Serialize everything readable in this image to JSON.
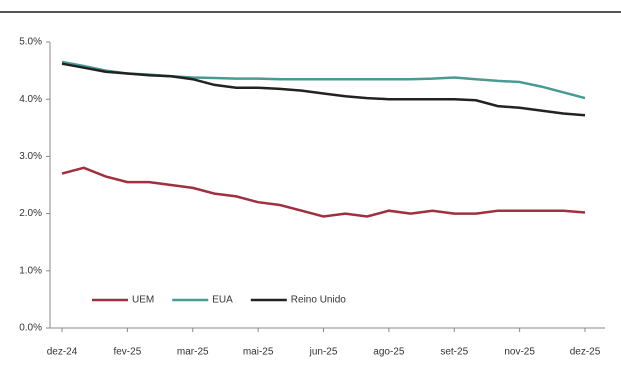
{
  "chart_data": {
    "type": "line",
    "categories": [
      "dez-24",
      null,
      null,
      "fev-25",
      null,
      null,
      "mar-25",
      null,
      null,
      "mai-25",
      null,
      null,
      "jun-25",
      null,
      null,
      "ago-25",
      null,
      null,
      "set-25",
      null,
      null,
      "nov-25",
      null,
      null,
      "dez-25"
    ],
    "series": [
      {
        "name": "UEM",
        "color": "#a0303f",
        "values": [
          2.7,
          2.8,
          2.65,
          2.55,
          2.55,
          2.5,
          2.45,
          2.35,
          2.3,
          2.2,
          2.15,
          2.05,
          1.95,
          2.0,
          1.95,
          2.05,
          2.0,
          2.05,
          2.0,
          2.0,
          2.05,
          2.05,
          2.05,
          2.05,
          2.02
        ]
      },
      {
        "name": "EUA",
        "color": "#4a9a94",
        "values": [
          4.65,
          4.58,
          4.5,
          4.45,
          4.43,
          4.4,
          4.38,
          4.37,
          4.36,
          4.36,
          4.35,
          4.35,
          4.35,
          4.35,
          4.35,
          4.35,
          4.35,
          4.36,
          4.38,
          4.35,
          4.32,
          4.3,
          4.22,
          4.12,
          4.02
        ]
      },
      {
        "name": "Reino Unido",
        "color": "#222222",
        "values": [
          4.62,
          4.55,
          4.48,
          4.45,
          4.42,
          4.4,
          4.35,
          4.25,
          4.2,
          4.2,
          4.18,
          4.15,
          4.1,
          4.05,
          4.02,
          4.0,
          4.0,
          4.0,
          4.0,
          3.98,
          3.88,
          3.85,
          3.8,
          3.75,
          3.72
        ]
      }
    ],
    "ylim": [
      0,
      5
    ],
    "yticks": [
      {
        "value": 0,
        "label": "0.0%"
      },
      {
        "value": 1,
        "label": "1.0%"
      },
      {
        "value": 2,
        "label": "2.0%"
      },
      {
        "value": 3,
        "label": "3.0%"
      },
      {
        "value": 4,
        "label": "4.0%"
      },
      {
        "value": 5,
        "label": "5.0%"
      }
    ],
    "grid": false,
    "legend": "lower left"
  }
}
